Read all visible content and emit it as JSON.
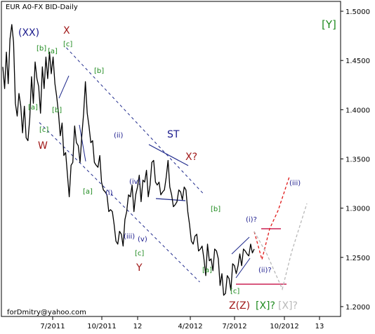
{
  "chart_data": {
    "type": "line",
    "title": "EUR A0-FX BID-Daily",
    "footer": "forDmitry@yahoo.com",
    "x_ticks": [
      "7/2011",
      "10/2011",
      "12",
      "4/2012",
      "7/2012",
      "10/2012",
      "13"
    ],
    "y_ticks": [
      "1.5000",
      "1.4500",
      "1.4000",
      "1.3500",
      "1.3000",
      "1.2500",
      "1.2000"
    ],
    "ylim": [
      1.19,
      1.51
    ],
    "colors": {
      "price": "#000000",
      "channel": "#1f2a8c",
      "green": "#1e8a1e",
      "red": "#a01818",
      "navy": "#1a1a8c",
      "forecast_red": "#e01818",
      "forecast_gray": "#b8b8b8",
      "target": "#cc2255"
    },
    "series": [
      {
        "values": [
          1.44,
          1.425,
          1.455,
          1.43,
          1.468,
          1.49,
          1.465,
          1.41,
          1.39,
          1.42,
          1.4,
          1.38,
          1.4,
          1.375,
          1.365,
          1.395,
          1.43,
          1.41,
          1.445,
          1.435,
          1.42,
          1.4,
          1.44,
          1.425,
          1.45,
          1.435,
          1.455,
          1.44,
          1.45,
          1.43,
          1.41,
          1.4,
          1.37,
          1.39,
          1.35,
          1.36,
          1.33,
          1.315,
          1.34,
          1.35,
          1.38,
          1.37,
          1.36,
          1.35,
          1.37,
          1.4,
          1.425,
          1.4,
          1.38,
          1.37,
          1.365,
          1.35,
          1.34,
          1.345,
          1.35,
          1.33,
          1.315,
          1.32,
          1.31,
          1.3,
          1.295,
          1.3,
          1.28,
          1.27,
          1.26,
          1.28,
          1.27,
          1.265,
          1.285,
          1.3,
          1.31,
          1.315,
          1.32,
          1.3,
          1.31,
          1.325,
          1.33,
          1.31,
          1.325,
          1.33,
          1.335,
          1.315,
          1.32,
          1.35,
          1.345,
          1.33,
          1.32,
          1.33,
          1.31,
          1.32,
          1.315,
          1.335,
          1.345,
          1.325,
          1.31,
          1.305,
          1.3,
          1.31,
          1.315,
          1.32,
          1.305,
          1.325,
          1.315,
          1.3,
          1.28,
          1.27,
          1.26,
          1.275,
          1.27,
          1.26,
          1.255,
          1.265,
          1.245,
          1.235,
          1.26,
          1.25,
          1.245,
          1.24,
          1.255,
          1.26,
          1.245,
          1.225,
          1.23,
          1.215,
          1.21,
          1.235,
          1.225,
          1.22,
          1.24,
          1.245,
          1.23,
          1.245,
          1.25,
          1.245,
          1.255,
          1.26,
          1.25,
          1.255,
          1.26,
          1.258,
          1.255
        ]
      }
    ],
    "channel_lines": [
      {
        "x1": 0.19,
        "y1": 1.463,
        "x2": 0.595,
        "y2": 1.315
      },
      {
        "x1": 0.11,
        "y1": 1.387,
        "x2": 0.585,
        "y2": 1.225
      }
    ],
    "annotations": [
      {
        "text": "(XX)",
        "kind": "navy",
        "size": 14
      },
      {
        "text": "X",
        "kind": "red",
        "size": 14
      },
      {
        "text": "[Y]",
        "kind": "green",
        "size": 15
      },
      {
        "text": "[b]",
        "kind": "green",
        "size": 10
      },
      {
        "text": "[a]",
        "kind": "green",
        "size": 10
      },
      {
        "text": "[c]",
        "kind": "green",
        "size": 10
      },
      {
        "text": "[b]",
        "kind": "green",
        "size": 10
      },
      {
        "text": "[a]",
        "kind": "green",
        "size": 10
      },
      {
        "text": "[b]",
        "kind": "green",
        "size": 10
      },
      {
        "text": "[c]",
        "kind": "green",
        "size": 10
      },
      {
        "text": "W",
        "kind": "red",
        "size": 14
      },
      {
        "text": "(ii)",
        "kind": "navy",
        "size": 10
      },
      {
        "text": "ST",
        "kind": "navy",
        "size": 14
      },
      {
        "text": "X?",
        "kind": "red",
        "size": 14
      },
      {
        "text": "(iv)",
        "kind": "navy",
        "size": 10
      },
      {
        "text": "(i)",
        "kind": "navy",
        "size": 10
      },
      {
        "text": "[a]",
        "kind": "green",
        "size": 10
      },
      {
        "text": "(iii)",
        "kind": "navy",
        "size": 10
      },
      {
        "text": "(v)",
        "kind": "navy",
        "size": 10
      },
      {
        "text": "[c]",
        "kind": "green",
        "size": 10
      },
      {
        "text": "Y",
        "kind": "red",
        "size": 14
      },
      {
        "text": "[b]",
        "kind": "green",
        "size": 10
      },
      {
        "text": "(iii)",
        "kind": "navy",
        "size": 10
      },
      {
        "text": "(i)?",
        "kind": "navy",
        "size": 10
      },
      {
        "text": "(ii)?",
        "kind": "navy",
        "size": 10
      },
      {
        "text": "[a]",
        "kind": "green",
        "size": 10
      },
      {
        "text": "[c]",
        "kind": "green",
        "size": 10
      },
      {
        "text": "Z(Z)",
        "kind": "red",
        "size": 14
      },
      {
        "text": "[X]?",
        "kind": "green",
        "size": 14
      },
      {
        "text": "[X]?",
        "kind": "gray",
        "size": 14
      }
    ]
  }
}
